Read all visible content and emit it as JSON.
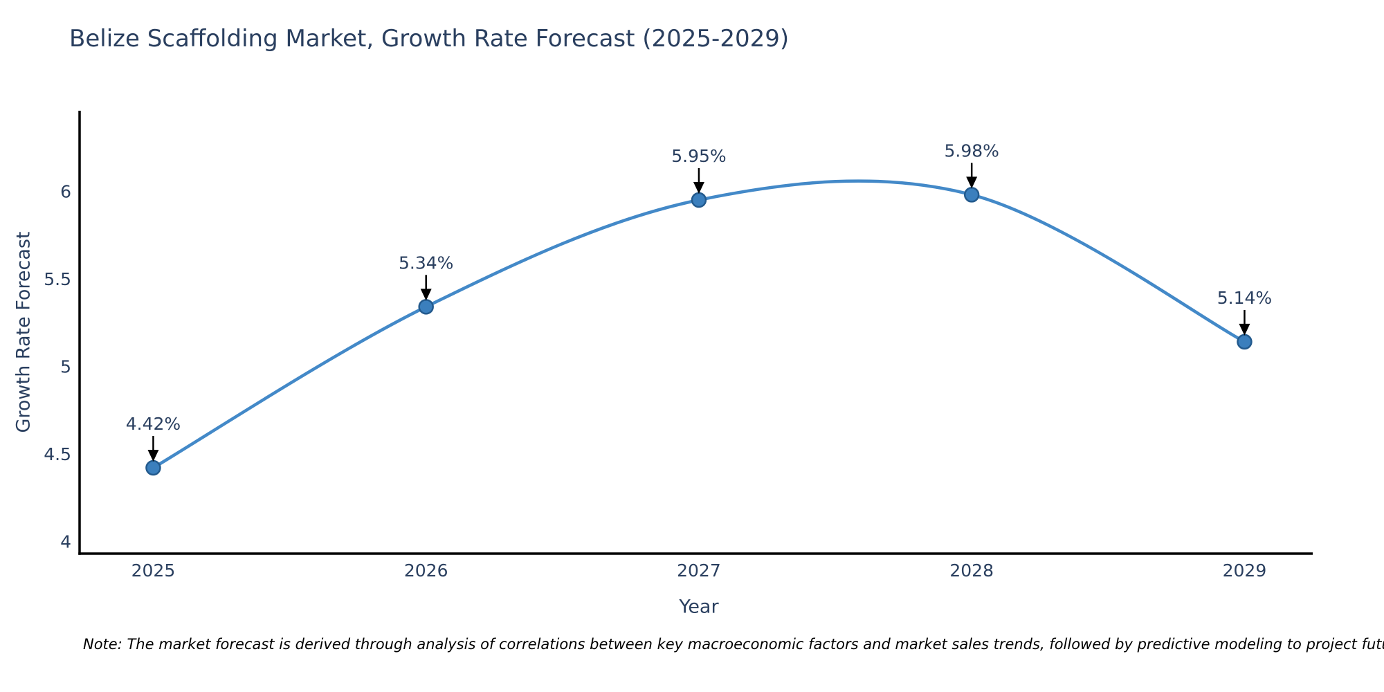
{
  "title": "Belize Scaffolding Market, Growth Rate Forecast (2025-2029)",
  "note": "Note: The market forecast is derived through analysis of correlations between key macroeconomic factors and market sales trends, followed by predictive modeling to project future sales",
  "colors": {
    "background": "#ffffff",
    "text": "#2a3f5f",
    "line": "#4389c8",
    "marker_fill": "#3b7fbd",
    "marker_edge": "#235a8d",
    "arrow": "#000000",
    "axis": "#000000",
    "note_text": "#000000"
  },
  "chart_data": {
    "type": "line",
    "title": "Belize Scaffolding Market, Growth Rate Forecast (2025-2029)",
    "xlabel": "Year",
    "ylabel": "Growth Rate Forecast",
    "x": [
      2025,
      2026,
      2027,
      2028,
      2029
    ],
    "series": [
      {
        "name": "Growth Rate Forecast",
        "values": [
          4.42,
          5.34,
          5.95,
          5.98,
          5.14
        ]
      }
    ],
    "point_labels": [
      "4.42%",
      "5.34%",
      "5.95%",
      "5.98%",
      "5.14%"
    ],
    "xtick_labels": [
      "2025",
      "2026",
      "2027",
      "2028",
      "2029"
    ],
    "ytick_values": [
      4,
      4.5,
      5,
      5.5,
      6
    ],
    "ytick_labels": [
      "4",
      "4.5",
      "5",
      "5.5",
      "6"
    ],
    "xlim": [
      2024.73,
      2029.25
    ],
    "ylim": [
      3.93,
      6.46
    ],
    "line_shape": "spline",
    "grid": false,
    "legend_position": "none"
  }
}
